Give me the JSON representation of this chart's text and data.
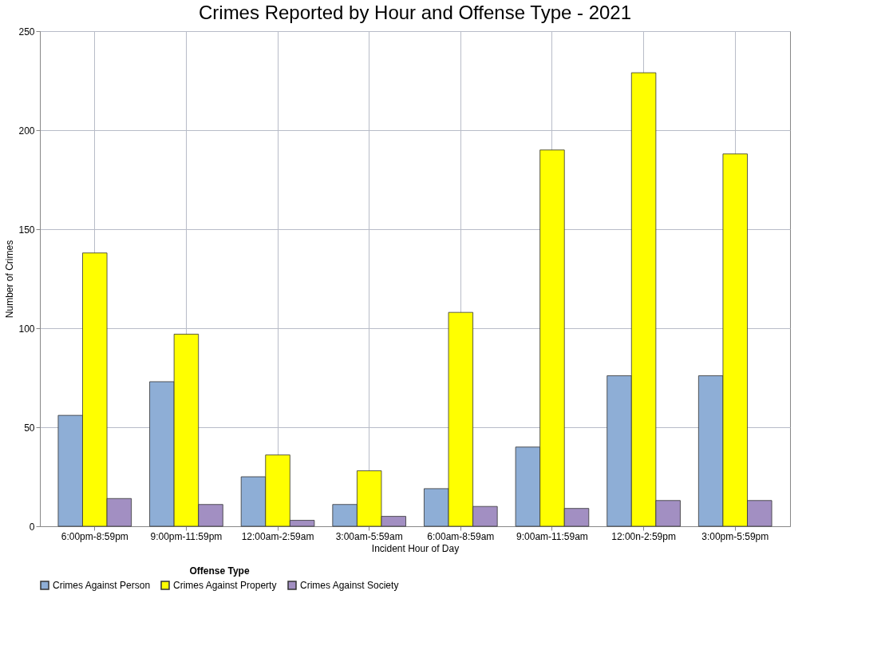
{
  "chart_data": {
    "type": "bar",
    "title": "Crimes Reported by Hour and Offense Type - 2021",
    "xlabel": "Incident Hour of Day",
    "ylabel": "Number of Crimes",
    "legend_title": "Offense Type",
    "categories": [
      "6:00pm-8:59pm",
      "9:00pm-11:59pm",
      "12:00am-2:59am",
      "3:00am-5:59am",
      "6:00am-8:59am",
      "9:00am-11:59am",
      "12:00n-2:59pm",
      "3:00pm-5:59pm"
    ],
    "series": [
      {
        "name": "Crimes Against Person",
        "color": "#8eaed6",
        "values": [
          56,
          73,
          25,
          11,
          19,
          40,
          76,
          76
        ]
      },
      {
        "name": "Crimes Against Property",
        "color": "#ffff00",
        "values": [
          138,
          97,
          36,
          28,
          108,
          190,
          229,
          188
        ]
      },
      {
        "name": "Crimes Against Society",
        "color": "#a28fc2",
        "values": [
          14,
          11,
          3,
          5,
          10,
          9,
          13,
          13
        ]
      }
    ],
    "ylim": [
      0,
      250
    ],
    "yticks": [
      0,
      50,
      100,
      150,
      200,
      250
    ],
    "grid": true,
    "legend": "bottom"
  }
}
